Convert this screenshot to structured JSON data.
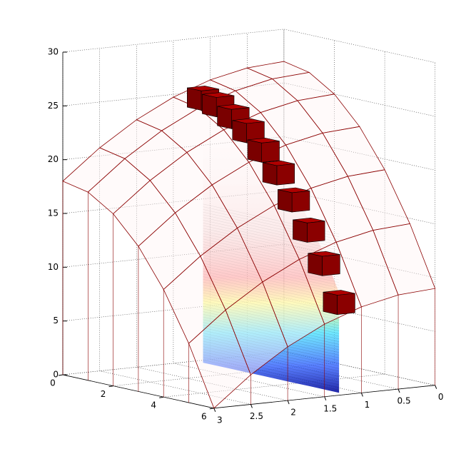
{
  "chart_data": {
    "type": "surface_bar3d",
    "x": [
      0,
      1,
      2,
      3,
      4,
      5,
      6
    ],
    "y": [
      0,
      0.5,
      1,
      1.5,
      2,
      2.5,
      3
    ],
    "z": [
      [
        27,
        26.5,
        25,
        22.5,
        19,
        14.5,
        9
      ],
      [
        26.75,
        26.25,
        24.75,
        22.25,
        18.75,
        14.25,
        8.75
      ],
      [
        26,
        25.5,
        24,
        21.5,
        18,
        13.5,
        8
      ],
      [
        24.75,
        24.25,
        22.75,
        20.25,
        16.75,
        12.25,
        6.75
      ],
      [
        23,
        22.5,
        21,
        18.5,
        15,
        10.5,
        5
      ],
      [
        20.75,
        20.25,
        18.75,
        16.25,
        12.75,
        8.25,
        2.75
      ],
      [
        18,
        17.5,
        16,
        13.5,
        10,
        5.5,
        0
      ]
    ],
    "surface_edge_color": "#8b0000",
    "bars": {
      "x": [
        0.3,
        0.9,
        1.5,
        2.1,
        2.7,
        3.3,
        3.9,
        4.5,
        5.1,
        5.7
      ],
      "y": [
        1.2,
        1.2,
        1.2,
        1.2,
        1.2,
        1.2,
        1.2,
        1.2,
        1.2,
        1.2
      ],
      "values": [
        25.5,
        25.2,
        24.4,
        23.4,
        21.9,
        20.1,
        17.9,
        15.4,
        12.6,
        9.3
      ],
      "color": "#8b0000"
    },
    "xlim": [
      0,
      6
    ],
    "ylim": [
      0,
      3
    ],
    "zlim": [
      0,
      30
    ],
    "xticks": [
      0,
      2,
      4,
      6
    ],
    "yticks": [
      0,
      0.5,
      1,
      1.5,
      2,
      2.5,
      3
    ],
    "zticks": [
      0,
      5,
      10,
      15,
      20,
      25,
      30
    ],
    "grid": true
  }
}
